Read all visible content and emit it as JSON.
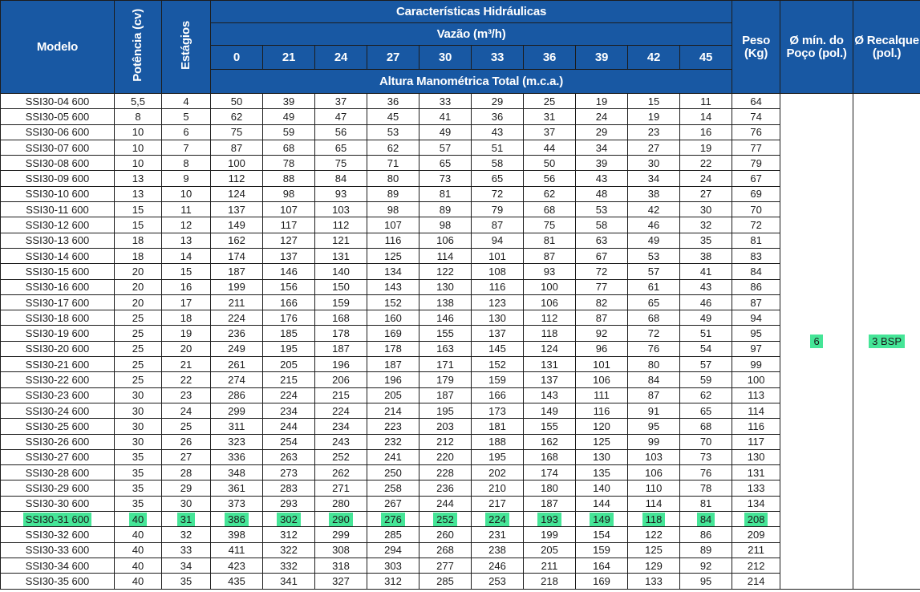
{
  "header": {
    "model": "Modelo",
    "power": "Potência (cv)",
    "stages": "Estágios",
    "hydraulic": "Características Hidráulicas",
    "flow": "Vazão (m³/h)",
    "head": "Altura Manométrica Total (m.c.a.)",
    "weight": "Peso (Kg)",
    "well": "Ø mín. do Poço (pol.)",
    "discharge": "Ø Recalque (pol.)",
    "flows": [
      "0",
      "21",
      "24",
      "27",
      "30",
      "33",
      "36",
      "39",
      "42",
      "45"
    ]
  },
  "well_value": "6",
  "discharge_value": "3 BSP",
  "highlight_color": "#45e597",
  "highlight_row_model": "SSI30-31 600",
  "rows": [
    [
      "SSI30-04 600",
      "5,5",
      "4",
      "50",
      "39",
      "37",
      "36",
      "33",
      "29",
      "25",
      "19",
      "15",
      "11",
      "64"
    ],
    [
      "SSI30-05 600",
      "8",
      "5",
      "62",
      "49",
      "47",
      "45",
      "41",
      "36",
      "31",
      "24",
      "19",
      "14",
      "74"
    ],
    [
      "SSI30-06 600",
      "10",
      "6",
      "75",
      "59",
      "56",
      "53",
      "49",
      "43",
      "37",
      "29",
      "23",
      "16",
      "76"
    ],
    [
      "SSI30-07 600",
      "10",
      "7",
      "87",
      "68",
      "65",
      "62",
      "57",
      "51",
      "44",
      "34",
      "27",
      "19",
      "77"
    ],
    [
      "SSI30-08 600",
      "10",
      "8",
      "100",
      "78",
      "75",
      "71",
      "65",
      "58",
      "50",
      "39",
      "30",
      "22",
      "79"
    ],
    [
      "SSI30-09 600",
      "13",
      "9",
      "112",
      "88",
      "84",
      "80",
      "73",
      "65",
      "56",
      "43",
      "34",
      "24",
      "67"
    ],
    [
      "SSI30-10 600",
      "13",
      "10",
      "124",
      "98",
      "93",
      "89",
      "81",
      "72",
      "62",
      "48",
      "38",
      "27",
      "69"
    ],
    [
      "SSI30-11 600",
      "15",
      "11",
      "137",
      "107",
      "103",
      "98",
      "89",
      "79",
      "68",
      "53",
      "42",
      "30",
      "70"
    ],
    [
      "SSI30-12 600",
      "15",
      "12",
      "149",
      "117",
      "112",
      "107",
      "98",
      "87",
      "75",
      "58",
      "46",
      "32",
      "72"
    ],
    [
      "SSI30-13 600",
      "18",
      "13",
      "162",
      "127",
      "121",
      "116",
      "106",
      "94",
      "81",
      "63",
      "49",
      "35",
      "81"
    ],
    [
      "SSI30-14 600",
      "18",
      "14",
      "174",
      "137",
      "131",
      "125",
      "114",
      "101",
      "87",
      "67",
      "53",
      "38",
      "83"
    ],
    [
      "SSI30-15 600",
      "20",
      "15",
      "187",
      "146",
      "140",
      "134",
      "122",
      "108",
      "93",
      "72",
      "57",
      "41",
      "84"
    ],
    [
      "SSI30-16 600",
      "20",
      "16",
      "199",
      "156",
      "150",
      "143",
      "130",
      "116",
      "100",
      "77",
      "61",
      "43",
      "86"
    ],
    [
      "SSI30-17 600",
      "20",
      "17",
      "211",
      "166",
      "159",
      "152",
      "138",
      "123",
      "106",
      "82",
      "65",
      "46",
      "87"
    ],
    [
      "SSI30-18 600",
      "25",
      "18",
      "224",
      "176",
      "168",
      "160",
      "146",
      "130",
      "112",
      "87",
      "68",
      "49",
      "94"
    ],
    [
      "SSI30-19 600",
      "25",
      "19",
      "236",
      "185",
      "178",
      "169",
      "155",
      "137",
      "118",
      "92",
      "72",
      "51",
      "95"
    ],
    [
      "SSI30-20 600",
      "25",
      "20",
      "249",
      "195",
      "187",
      "178",
      "163",
      "145",
      "124",
      "96",
      "76",
      "54",
      "97"
    ],
    [
      "SSI30-21 600",
      "25",
      "21",
      "261",
      "205",
      "196",
      "187",
      "171",
      "152",
      "131",
      "101",
      "80",
      "57",
      "99"
    ],
    [
      "SSI30-22 600",
      "25",
      "22",
      "274",
      "215",
      "206",
      "196",
      "179",
      "159",
      "137",
      "106",
      "84",
      "59",
      "100"
    ],
    [
      "SSI30-23 600",
      "30",
      "23",
      "286",
      "224",
      "215",
      "205",
      "187",
      "166",
      "143",
      "111",
      "87",
      "62",
      "113"
    ],
    [
      "SSI30-24 600",
      "30",
      "24",
      "299",
      "234",
      "224",
      "214",
      "195",
      "173",
      "149",
      "116",
      "91",
      "65",
      "114"
    ],
    [
      "SSI30-25 600",
      "30",
      "25",
      "311",
      "244",
      "234",
      "223",
      "203",
      "181",
      "155",
      "120",
      "95",
      "68",
      "116"
    ],
    [
      "SSI30-26 600",
      "30",
      "26",
      "323",
      "254",
      "243",
      "232",
      "212",
      "188",
      "162",
      "125",
      "99",
      "70",
      "117"
    ],
    [
      "SSI30-27 600",
      "35",
      "27",
      "336",
      "263",
      "252",
      "241",
      "220",
      "195",
      "168",
      "130",
      "103",
      "73",
      "130"
    ],
    [
      "SSI30-28 600",
      "35",
      "28",
      "348",
      "273",
      "262",
      "250",
      "228",
      "202",
      "174",
      "135",
      "106",
      "76",
      "131"
    ],
    [
      "SSI30-29 600",
      "35",
      "29",
      "361",
      "283",
      "271",
      "258",
      "236",
      "210",
      "180",
      "140",
      "110",
      "78",
      "133"
    ],
    [
      "SSI30-30 600",
      "35",
      "30",
      "373",
      "293",
      "280",
      "267",
      "244",
      "217",
      "187",
      "144",
      "114",
      "81",
      "134"
    ],
    [
      "SSI30-31 600",
      "40",
      "31",
      "386",
      "302",
      "290",
      "276",
      "252",
      "224",
      "193",
      "149",
      "118",
      "84",
      "208"
    ],
    [
      "SSI30-32 600",
      "40",
      "32",
      "398",
      "312",
      "299",
      "285",
      "260",
      "231",
      "199",
      "154",
      "122",
      "86",
      "209"
    ],
    [
      "SSI30-33 600",
      "40",
      "33",
      "411",
      "322",
      "308",
      "294",
      "268",
      "238",
      "205",
      "159",
      "125",
      "89",
      "211"
    ],
    [
      "SSI30-34 600",
      "40",
      "34",
      "423",
      "332",
      "318",
      "303",
      "277",
      "246",
      "211",
      "164",
      "129",
      "92",
      "212"
    ],
    [
      "SSI30-35 600",
      "40",
      "35",
      "435",
      "341",
      "327",
      "312",
      "285",
      "253",
      "218",
      "169",
      "133",
      "95",
      "214"
    ]
  ]
}
